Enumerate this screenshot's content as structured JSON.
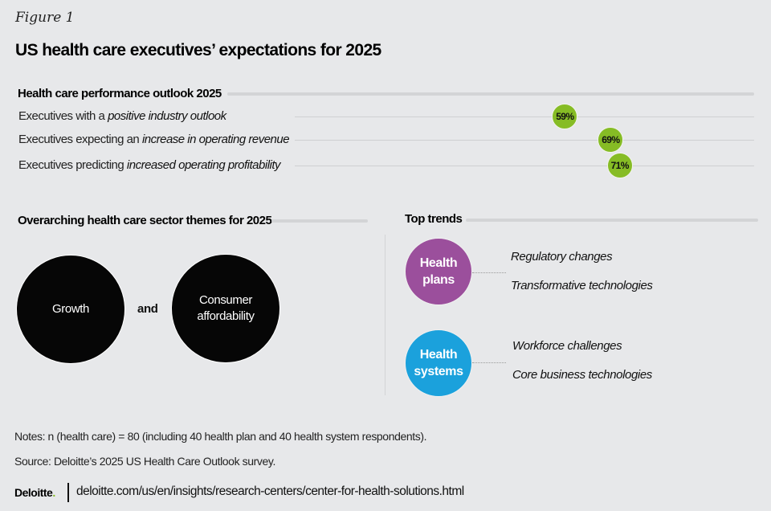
{
  "header": {
    "figure_label": "Figure 1",
    "title": "US health care executives’ expectations for 2025"
  },
  "chart_data": {
    "type": "scatter",
    "title": "Health care performance outlook 2025",
    "xlabel": "",
    "ylabel": "",
    "xlim": [
      0,
      100
    ],
    "unit": "%",
    "categories": [
      {
        "prefix": "Executives with a ",
        "emphasis": "positive industry outlook"
      },
      {
        "prefix": "Executives expecting an ",
        "emphasis": "increase in operating revenue"
      },
      {
        "prefix": "Executives predicting ",
        "emphasis": "increased operating profitability"
      }
    ],
    "values": [
      59,
      69,
      71
    ],
    "labels": [
      "59%",
      "69%",
      "71%"
    ],
    "marker_color": "#86bc25",
    "grid": false,
    "legend": "none"
  },
  "themes": {
    "title": "Overarching health care sector themes for 2025",
    "items": [
      "Growth",
      "Consumer affordability"
    ],
    "connector": "and",
    "circle_color": "#060606"
  },
  "trends": {
    "title": "Top trends",
    "groups": [
      {
        "label_line1": "Health",
        "label_line2": "plans",
        "color": "#9b4f9c",
        "items": [
          "Regulatory changes",
          "Transformative technologies"
        ]
      },
      {
        "label_line1": "Health",
        "label_line2": "systems",
        "color": "#1ba1dc",
        "items": [
          "Workforce challenges",
          "Core business technologies"
        ]
      }
    ]
  },
  "footer": {
    "notes": "Notes: n (health care) = 80 (including 40 health plan and 40 health system respondents).",
    "source": "Source: Deloitte’s 2025 US Health Care Outlook survey.",
    "logo_text": "Deloitte",
    "logo_dot": ".",
    "url": "deloitte.com/us/en/insights/research-centers/center-for-health-solutions.html"
  }
}
